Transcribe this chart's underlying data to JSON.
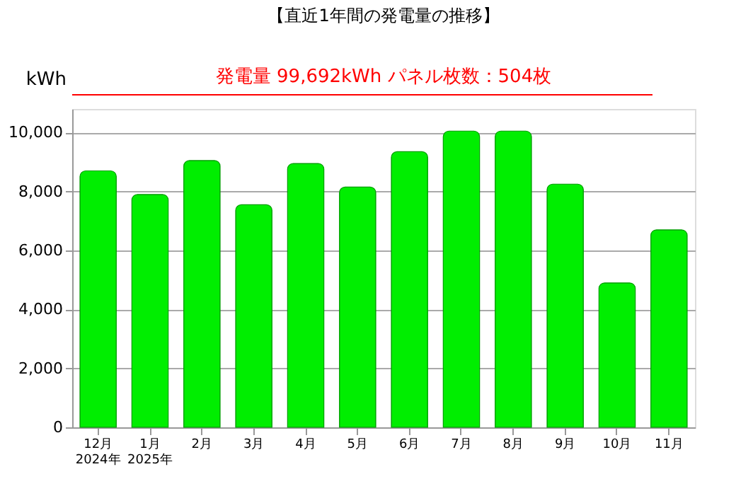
{
  "chart_data": {
    "type": "bar",
    "title": "【直近1年間の発電量の推移】",
    "ylabel": "kWh",
    "categories": [
      "12月\n2024年",
      "1月\n2025年",
      "2月",
      "3月",
      "4月",
      "5月",
      "6月",
      "7月",
      "8月",
      "9月",
      "10月",
      "11月"
    ],
    "values": [
      8700,
      7900,
      9050,
      7550,
      8950,
      8150,
      9350,
      10050,
      10050,
      8250,
      4900,
      6700
    ],
    "color": "#00ee00",
    "ylim": [
      0,
      10800
    ],
    "yticks": [
      {
        "value": 0,
        "label": "0"
      },
      {
        "value": 2000,
        "label": "2,000"
      },
      {
        "value": 4000,
        "label": "4,000"
      },
      {
        "value": 6000,
        "label": "6,000"
      },
      {
        "value": 8000,
        "label": "8,000"
      },
      {
        "value": 10000,
        "label": "10,000"
      }
    ],
    "grid": "y",
    "annotations": [
      "発電量  99,692kWh      パネル枚数：504枚"
    ]
  }
}
